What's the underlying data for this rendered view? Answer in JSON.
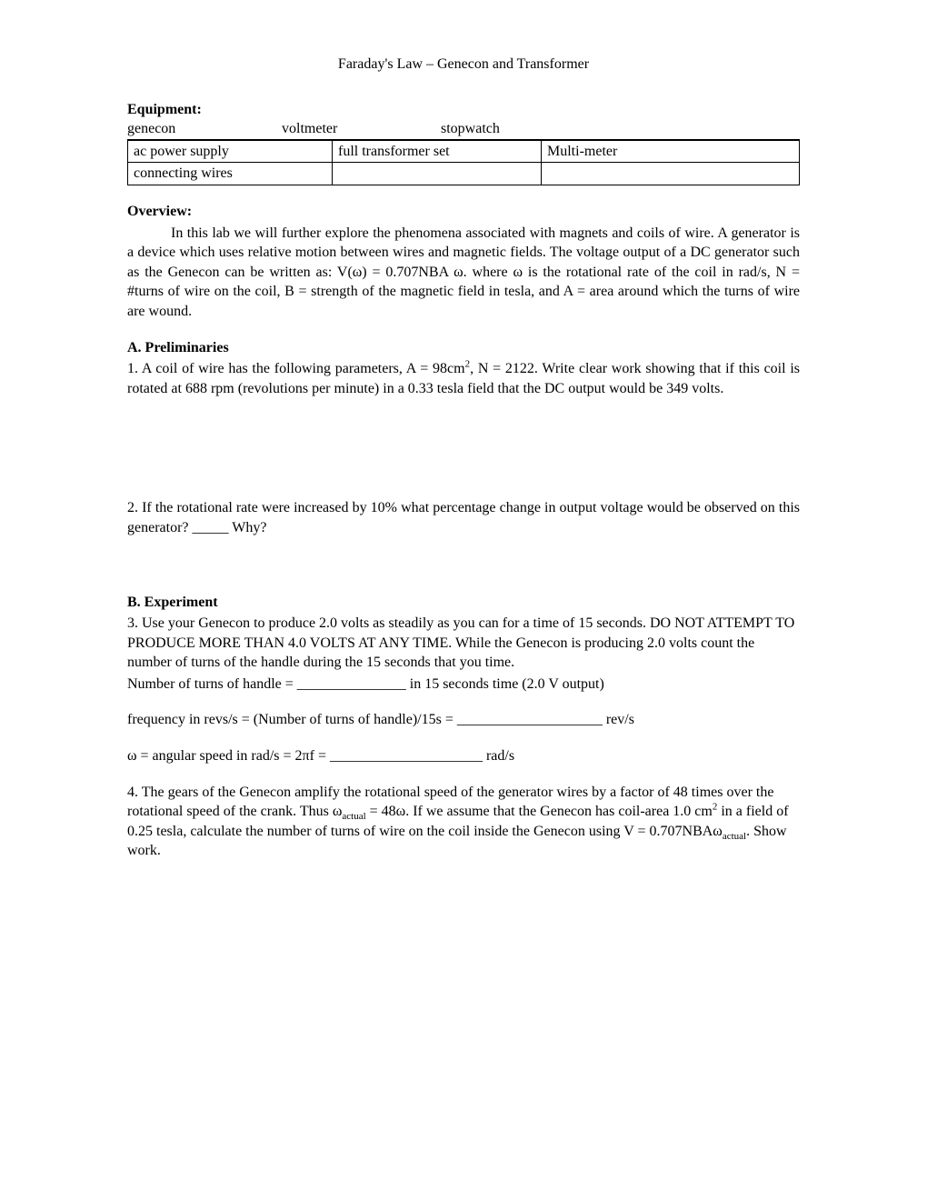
{
  "title": "Faraday's Law – Genecon and Transformer",
  "equipment": {
    "heading": "Equipment:",
    "row1": {
      "c1": "genecon",
      "c2": "voltmeter",
      "c3": "stopwatch"
    },
    "row2": {
      "c1": "ac power supply",
      "c2": "full transformer set",
      "c3": "Multi-meter"
    },
    "row3": {
      "c1": "connecting wires",
      "c2": "",
      "c3": ""
    }
  },
  "overview": {
    "heading": "Overview:",
    "body_pre": "In this lab we will further explore the phenomena associated with magnets and coils of wire. A generator is a device which uses relative motion between wires and magnetic fields. The voltage output of a DC generator such as the Genecon can be written as: V(ω) = 0.707NBA ω. where ω is the rotational rate of the coil in rad/s, N = #turns of wire on the coil, B = strength of the magnetic field in tesla, and A = area around which the turns of wire are wound."
  },
  "sectionA": {
    "heading": "A. Preliminaries",
    "q1_pre": "1. A coil of wire has the following parameters, A = 98cm",
    "q1_sup": "2",
    "q1_post": ", N = 2122. Write clear work showing that if this coil is rotated at 688 rpm (revolutions per minute) in a 0.33 tesla field that the DC output would be 349 volts.",
    "q2": "2. If the rotational rate were increased by 10% what percentage change in output voltage would be observed on this generator? _____ Why?"
  },
  "sectionB": {
    "heading": "B. Experiment",
    "q3a": "3. Use your Genecon to produce 2.0 volts as steadily as you can for a time of 15 seconds. DO NOT ATTEMPT TO PRODUCE MORE THAN 4.0 VOLTS AT ANY TIME. While the Genecon is producing 2.0 volts count the number of turns of the handle during the 15 seconds that you time.",
    "q3b": "Number of turns of handle = _______________ in 15 seconds time (2.0 V output)",
    "q3c": "frequency in revs/s = (Number of turns of handle)/15s = ____________________ rev/s",
    "q3d": "ω = angular speed in rad/s = 2πf = _____________________ rad/s",
    "q4_pre": "4. The gears of the Genecon amplify the rotational speed of the generator wires by a factor of 48 times over the rotational speed of the crank. Thus ω",
    "q4_sub1": "actual",
    "q4_mid1": " = 48ω. If we assume that the Genecon has coil-area 1.0 cm",
    "q4_sup": "2",
    "q4_mid2": " in a field of 0.25 tesla, calculate the number of turns of wire on the coil inside the Genecon using V = 0.707NBAω",
    "q4_sub2": "actual",
    "q4_post": ".  Show work."
  }
}
